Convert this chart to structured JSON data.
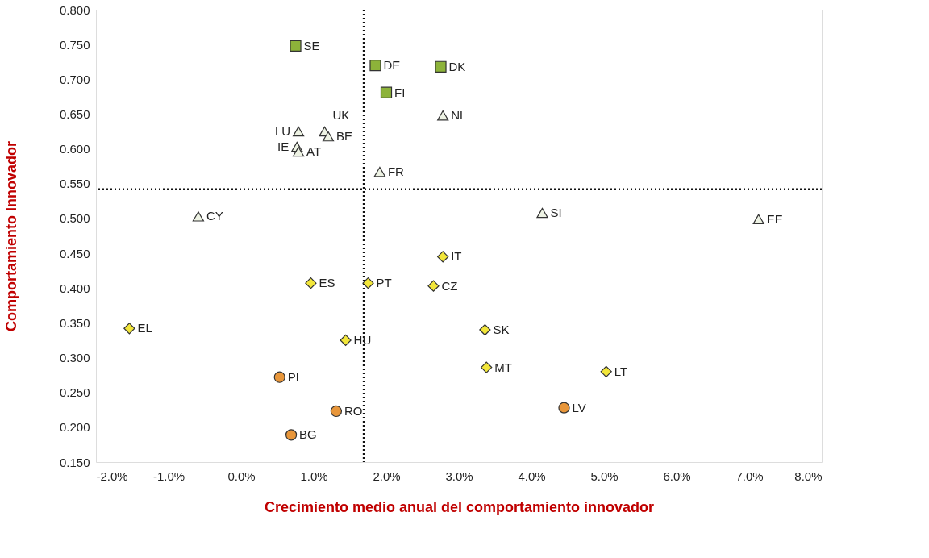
{
  "chart_data": {
    "type": "scatter",
    "xlabel": "Crecimiento medio anual del comportamiento innovador",
    "ylabel": "Comportamiento Innovador",
    "xlim": [
      -2,
      8
    ],
    "ylim": [
      0.15,
      0.8
    ],
    "xticks": [
      {
        "value": -2,
        "label": "-2.0%"
      },
      {
        "value": -1,
        "label": "-1.0%"
      },
      {
        "value": 0,
        "label": "0.0%"
      },
      {
        "value": 1,
        "label": "1.0%"
      },
      {
        "value": 2,
        "label": "2.0%"
      },
      {
        "value": 3,
        "label": "3.0%"
      },
      {
        "value": 4,
        "label": "4.0%"
      },
      {
        "value": 5,
        "label": "5.0%"
      },
      {
        "value": 6,
        "label": "6.0%"
      },
      {
        "value": 7,
        "label": "7.0%"
      },
      {
        "value": 8,
        "label": "8.0%"
      }
    ],
    "yticks": [
      {
        "value": 0.15,
        "label": "0.150"
      },
      {
        "value": 0.2,
        "label": "0.200"
      },
      {
        "value": 0.25,
        "label": "0.250"
      },
      {
        "value": 0.3,
        "label": "0.300"
      },
      {
        "value": 0.35,
        "label": "0.350"
      },
      {
        "value": 0.4,
        "label": "0.400"
      },
      {
        "value": 0.45,
        "label": "0.450"
      },
      {
        "value": 0.5,
        "label": "0.500"
      },
      {
        "value": 0.55,
        "label": "0.550"
      },
      {
        "value": 0.6,
        "label": "0.600"
      },
      {
        "value": 0.65,
        "label": "0.650"
      },
      {
        "value": 0.7,
        "label": "0.700"
      },
      {
        "value": 0.75,
        "label": "0.750"
      },
      {
        "value": 0.8,
        "label": "0.800"
      }
    ],
    "grid": false,
    "series": [
      {
        "color": "#8db33a",
        "marker": "square",
        "x": [
          0.75,
          1.85,
          2.75,
          2.0
        ],
        "values": [
          0.748,
          0.72,
          0.718,
          0.681
        ]
      },
      {
        "color": "#eef3e4",
        "marker": "triangle",
        "x": [
          2.78,
          0.79,
          1.15,
          1.2,
          0.77,
          0.79,
          1.91,
          -0.59,
          4.15,
          7.13
        ],
        "values": [
          0.648,
          0.625,
          0.625,
          0.618,
          0.603,
          0.596,
          0.567,
          0.503,
          0.508,
          0.499
        ]
      },
      {
        "color": "#f2e63a",
        "marker": "diamond",
        "x": [
          2.78,
          0.96,
          1.75,
          2.65,
          -1.54,
          3.36,
          1.44,
          3.38,
          5.03
        ],
        "values": [
          0.445,
          0.407,
          0.407,
          0.403,
          0.342,
          0.34,
          0.325,
          0.286,
          0.28
        ]
      },
      {
        "color": "#e8963a",
        "marker": "circle",
        "x": [
          0.53,
          4.45,
          1.31,
          0.69
        ],
        "values": [
          0.272,
          0.228,
          0.223,
          0.189
        ]
      }
    ],
    "annotations": [
      {
        "text": "SE",
        "x": 0.75,
        "y": 0.748
      },
      {
        "text": "DE",
        "x": 1.85,
        "y": 0.72
      },
      {
        "text": "DK",
        "x": 2.75,
        "y": 0.718
      },
      {
        "text": "FI",
        "x": 2.0,
        "y": 0.681
      },
      {
        "text": "NL",
        "x": 2.78,
        "y": 0.648
      },
      {
        "text": "LU",
        "x": 0.79,
        "y": 0.625
      },
      {
        "text": "UK",
        "x": 1.15,
        "y": 0.625
      },
      {
        "text": "BE",
        "x": 1.2,
        "y": 0.618
      },
      {
        "text": "IE",
        "x": 0.77,
        "y": 0.603
      },
      {
        "text": "AT",
        "x": 0.79,
        "y": 0.596
      },
      {
        "text": "FR",
        "x": 1.91,
        "y": 0.567
      },
      {
        "text": "CY",
        "x": -0.59,
        "y": 0.503
      },
      {
        "text": "SI",
        "x": 4.15,
        "y": 0.508
      },
      {
        "text": "EE",
        "x": 7.13,
        "y": 0.499
      },
      {
        "text": "IT",
        "x": 2.78,
        "y": 0.445
      },
      {
        "text": "ES",
        "x": 0.96,
        "y": 0.407
      },
      {
        "text": "PT",
        "x": 1.75,
        "y": 0.407
      },
      {
        "text": "CZ",
        "x": 2.65,
        "y": 0.403
      },
      {
        "text": "EL",
        "x": -1.54,
        "y": 0.342
      },
      {
        "text": "SK",
        "x": 3.36,
        "y": 0.34
      },
      {
        "text": "HU",
        "x": 1.44,
        "y": 0.325
      },
      {
        "text": "MT",
        "x": 3.38,
        "y": 0.286
      },
      {
        "text": "LT",
        "x": 5.03,
        "y": 0.28
      },
      {
        "text": "PL",
        "x": 0.53,
        "y": 0.272
      },
      {
        "text": "LV",
        "x": 4.45,
        "y": 0.228
      },
      {
        "text": "RO",
        "x": 1.31,
        "y": 0.223
      },
      {
        "text": "BG",
        "x": 0.69,
        "y": 0.189
      }
    ],
    "ref_lines": [
      {
        "axis": "x",
        "value": 1.69,
        "line_style": "dotted"
      },
      {
        "axis": "y",
        "value": 0.542,
        "line_style": "dotted"
      }
    ]
  }
}
